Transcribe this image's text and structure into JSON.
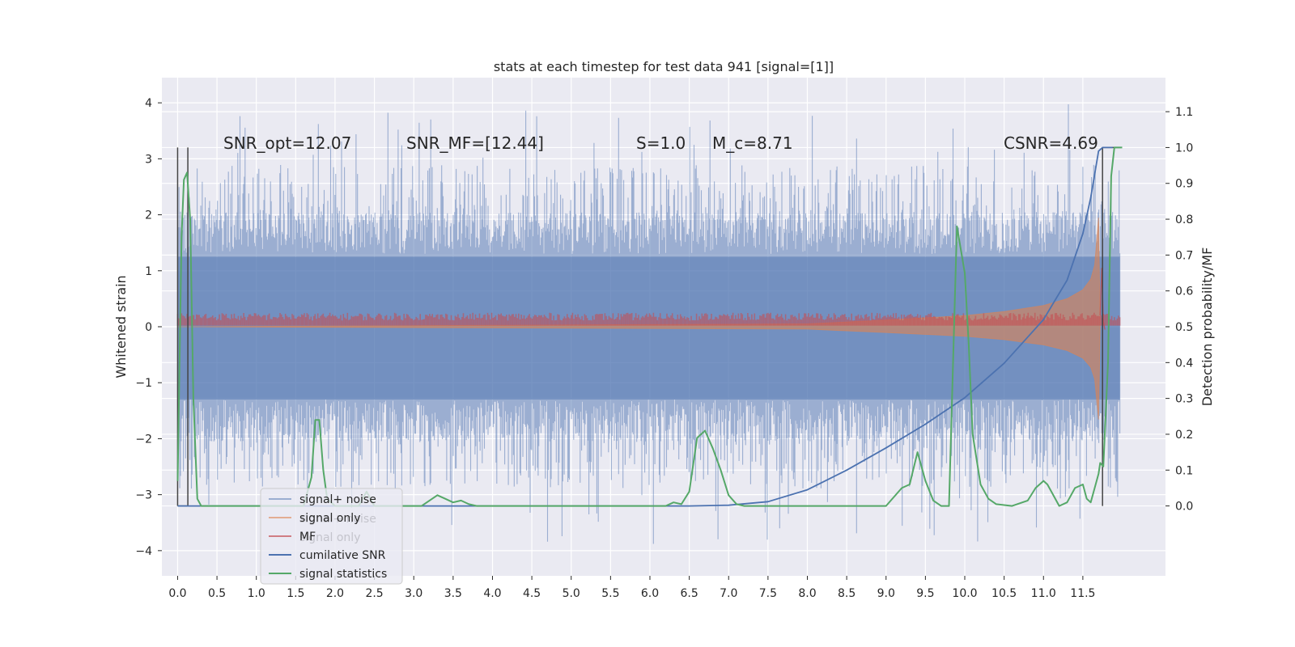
{
  "chart_data": {
    "type": "line",
    "title": "stats at each timestep for test data 941 [signal=[1]]",
    "ylabel": "Whitened strain",
    "ylabel_right": "Detection probability/MF",
    "xlim": [
      -0.2,
      12.55
    ],
    "ylim": [
      -4.45,
      4.45
    ],
    "ylim_right": [
      -0.195,
      1.195
    ],
    "xticks": [
      "0.0",
      "0.5",
      "1.0",
      "1.5",
      "2.0",
      "2.5",
      "3.0",
      "3.5",
      "4.0",
      "4.5",
      "5.0",
      "5.5",
      "6.0",
      "6.5",
      "7.0",
      "7.5",
      "8.0",
      "8.5",
      "9.0",
      "9.5",
      "10.0",
      "10.5",
      "11.0",
      "11.5"
    ],
    "yticks": [
      "4",
      "3",
      "2",
      "1",
      "0",
      "−1",
      "−2",
      "−3",
      "−4"
    ],
    "yticks_right": [
      "1.1",
      "1.0",
      "0.9",
      "0.8",
      "0.7",
      "0.6",
      "0.5",
      "0.4",
      "0.3",
      "0.2",
      "0.1",
      "0.0"
    ],
    "annotations": [
      "SNR_opt=12.07",
      "SNR_MF=[12.44]",
      "S=1.0",
      "M_c=8.71",
      "CSNR=4.69"
    ],
    "legend": [
      "signal+ noise",
      "signal only",
      "MF",
      "cumilative SNR",
      "signal statistics"
    ],
    "legend_ghost": [
      "signal+ noise",
      "signal only"
    ],
    "legend_location": "lower-left",
    "colors": {
      "noise": "#4c72b0",
      "signal_only": "#dd8452",
      "mf": "#c44e52",
      "cumulative": "#4c72b0",
      "statistics": "#55a868",
      "marker": "#444444",
      "axes_bg": "#eaeaf2",
      "grid": "#ffffff"
    },
    "series": [
      {
        "name": "signal+ noise",
        "axis": "left",
        "style": "dense noise, upper envelope ~1.9, lower ~-1.9, spikes to ~4"
      },
      {
        "name": "signal only",
        "axis": "left",
        "envelope": {
          "x": [
            0.0,
            8.0,
            9.0,
            10.0,
            10.5,
            11.0,
            11.3,
            11.5,
            11.6,
            11.65,
            11.7,
            11.72
          ],
          "y": [
            0.0,
            0.05,
            0.12,
            0.2,
            0.27,
            0.38,
            0.5,
            0.66,
            0.85,
            1.1,
            1.95,
            0.0
          ]
        }
      },
      {
        "name": "MF",
        "axis": "left",
        "band": [
          0.02,
          0.25
        ]
      },
      {
        "name": "cumilative SNR",
        "axis": "right",
        "x": [
          0.0,
          6.5,
          7.0,
          7.5,
          8.0,
          8.5,
          9.0,
          9.5,
          10.0,
          10.5,
          11.0,
          11.3,
          11.5,
          11.6,
          11.7,
          11.75,
          11.8,
          11.88
        ],
        "y": [
          0.0,
          0.0,
          0.002,
          0.012,
          0.045,
          0.1,
          0.162,
          0.228,
          0.302,
          0.398,
          0.52,
          0.63,
          0.76,
          0.86,
          0.99,
          1.0,
          1.0,
          1.0
        ]
      },
      {
        "name": "signal statistics",
        "axis": "right",
        "x": [
          0.0,
          0.05,
          0.08,
          0.12,
          0.16,
          0.2,
          0.25,
          0.3,
          1.6,
          1.7,
          1.75,
          1.8,
          1.85,
          1.9,
          2.0,
          2.3,
          2.4,
          2.5,
          3.1,
          3.3,
          3.4,
          3.5,
          3.6,
          3.7,
          3.8,
          6.2,
          6.3,
          6.4,
          6.5,
          6.6,
          6.7,
          6.8,
          6.9,
          7.0,
          7.1,
          7.2,
          7.5,
          8.5,
          9.0,
          9.2,
          9.3,
          9.4,
          9.5,
          9.6,
          9.7,
          9.8,
          9.9,
          10.0,
          10.05,
          10.1,
          10.2,
          10.3,
          10.4,
          10.6,
          10.8,
          10.9,
          11.0,
          11.05,
          11.1,
          11.2,
          11.3,
          11.4,
          11.5,
          11.55,
          11.6,
          11.65,
          11.7,
          11.72,
          11.76,
          11.82,
          11.86,
          11.9,
          12.0
        ],
        "y": [
          0.07,
          0.75,
          0.91,
          0.93,
          0.8,
          0.3,
          0.02,
          0.0,
          0.0,
          0.08,
          0.24,
          0.24,
          0.1,
          0.02,
          0.0,
          0.0,
          0.04,
          0.0,
          0.0,
          0.03,
          0.02,
          0.01,
          0.015,
          0.005,
          0.0,
          0.0,
          0.01,
          0.005,
          0.04,
          0.19,
          0.21,
          0.16,
          0.1,
          0.03,
          0.005,
          0.0,
          0.0,
          0.0,
          0.0,
          0.05,
          0.06,
          0.15,
          0.07,
          0.015,
          0.0,
          0.0,
          0.78,
          0.65,
          0.45,
          0.2,
          0.06,
          0.02,
          0.005,
          0.0,
          0.015,
          0.05,
          0.07,
          0.06,
          0.04,
          0.0,
          0.01,
          0.05,
          0.06,
          0.02,
          0.01,
          0.05,
          0.09,
          0.12,
          0.11,
          0.4,
          0.92,
          1.0,
          1.0
        ]
      },
      {
        "name": "markers",
        "axis": "right",
        "x": [
          0.0,
          0.13,
          11.75
        ],
        "y_top": [
          1.0,
          1.0,
          1.0
        ]
      }
    ]
  }
}
